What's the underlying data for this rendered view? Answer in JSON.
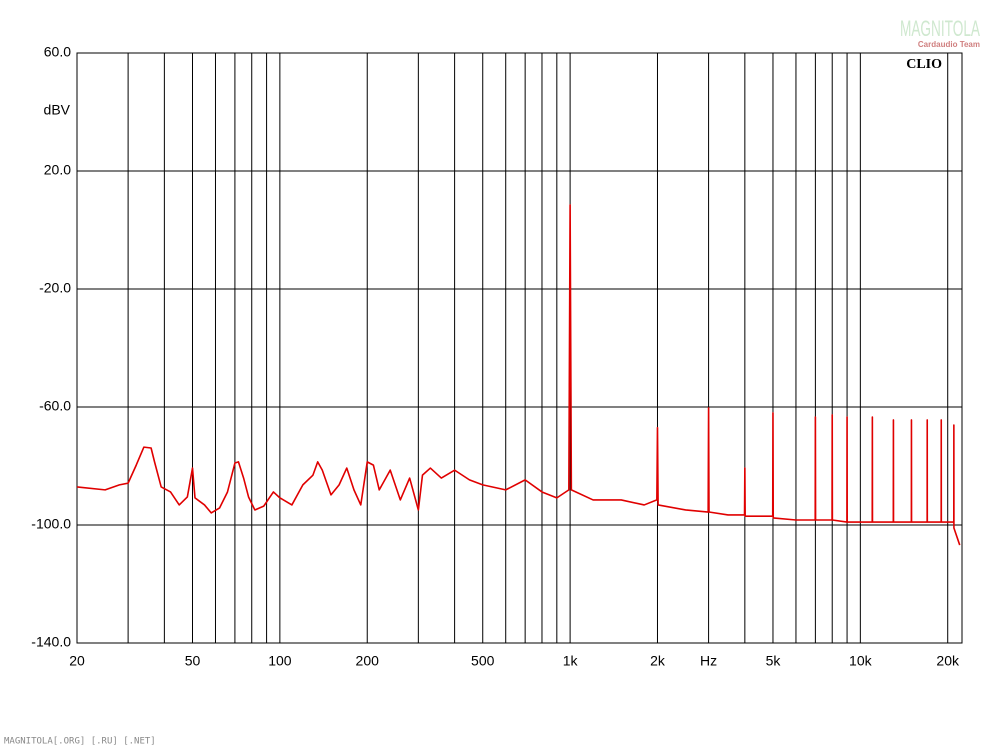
{
  "chart_data": {
    "type": "line",
    "y_label": "dBV",
    "brand": "CLIO",
    "watermark": "MAGNITOLA",
    "watermark_sub": "Cardaudio Team",
    "footer": "MAGNITOLA[.ORG] [.RU] [.NET]",
    "log_x": true,
    "grid": true,
    "xlim": [
      20,
      22400
    ],
    "ylim": [
      -140,
      60
    ],
    "xticks": [
      20,
      50,
      100,
      200,
      500,
      {
        "value": 1000,
        "label": "1k"
      },
      {
        "value": 2000,
        "label": "2k"
      },
      {
        "value": 3000,
        "label": "Hz"
      },
      {
        "value": 5000,
        "label": "5k"
      },
      {
        "value": 10000,
        "label": "10k"
      },
      {
        "value": 20000,
        "label": "20k"
      }
    ],
    "xminor": [
      30,
      40,
      60,
      70,
      80,
      90,
      300,
      400,
      600,
      700,
      800,
      900,
      4000,
      6000,
      7000,
      8000,
      9000
    ],
    "yticks": [
      {
        "value": 60,
        "label": "60.0"
      },
      {
        "value": 20,
        "label": "20.0"
      },
      {
        "value": -20,
        "label": "-20.0"
      },
      {
        "value": -60,
        "label": "-60.0"
      },
      {
        "value": -100,
        "label": "-100.0"
      },
      {
        "value": -140,
        "label": "-140.0"
      }
    ],
    "series": [
      {
        "color": "#e00000",
        "x": [
          20,
          25,
          28,
          30,
          32,
          34,
          36,
          37,
          39,
          42,
          45,
          48,
          50,
          51,
          55,
          58,
          62,
          66,
          70,
          72,
          75,
          78,
          82,
          88,
          95,
          100,
          110,
          120,
          130,
          135,
          140,
          150,
          160,
          170,
          180,
          190,
          200,
          210,
          220,
          240,
          260,
          280,
          300,
          310,
          330,
          360,
          400,
          450,
          500,
          600,
          700,
          800,
          900,
          990,
          1000,
          1010,
          1200,
          1500,
          1800,
          1990,
          2000,
          2010,
          2500,
          2990,
          3000,
          3010,
          3500,
          3990,
          4000,
          4010,
          4500,
          4990,
          5000,
          5010,
          6000,
          6990,
          7000,
          7010,
          7990,
          8000,
          8010,
          8990,
          9000,
          9010,
          10000,
          10990,
          11000,
          11010,
          12990,
          13000,
          13010,
          14990,
          15000,
          15010,
          16990,
          17000,
          17010,
          18990,
          19000,
          19010,
          20990,
          21000,
          21010,
          22000
        ],
        "values": [
          -87.1,
          -88.1,
          -86.4,
          -85.8,
          -79.7,
          -73.6,
          -73.9,
          -78.6,
          -87.1,
          -88.8,
          -93.2,
          -90.5,
          -80.7,
          -90.8,
          -93.2,
          -95.9,
          -94.2,
          -88.8,
          -79.0,
          -78.6,
          -84.1,
          -90.5,
          -94.9,
          -93.6,
          -88.8,
          -90.8,
          -93.2,
          -86.4,
          -83.1,
          -78.6,
          -81.4,
          -89.8,
          -86.4,
          -80.7,
          -88.1,
          -93.2,
          -78.6,
          -79.7,
          -88.1,
          -81.4,
          -91.5,
          -84.1,
          -94.9,
          -83.1,
          -80.7,
          -84.1,
          -81.4,
          -84.7,
          -86.4,
          -88.1,
          -84.7,
          -88.8,
          -90.8,
          -88.1,
          8.5,
          -88.1,
          -91.5,
          -91.5,
          -93.2,
          -91.5,
          -67.0,
          -93.2,
          -94.9,
          -95.6,
          -60.3,
          -95.6,
          -96.6,
          -96.6,
          -80.7,
          -97.0,
          -97.0,
          -97.0,
          -62.0,
          -97.6,
          -98.3,
          -98.3,
          -63.4,
          -98.3,
          -98.3,
          -62.7,
          -98.3,
          -99.0,
          -63.4,
          -99.0,
          -99.0,
          -99.0,
          -63.4,
          -99.0,
          -99.0,
          -64.4,
          -99.0,
          -99.0,
          -64.4,
          -99.0,
          -99.0,
          -64.4,
          -99.0,
          -99.0,
          -64.4,
          -99.0,
          -99.0,
          -66.1,
          -101.0,
          -106.8
        ]
      }
    ]
  }
}
